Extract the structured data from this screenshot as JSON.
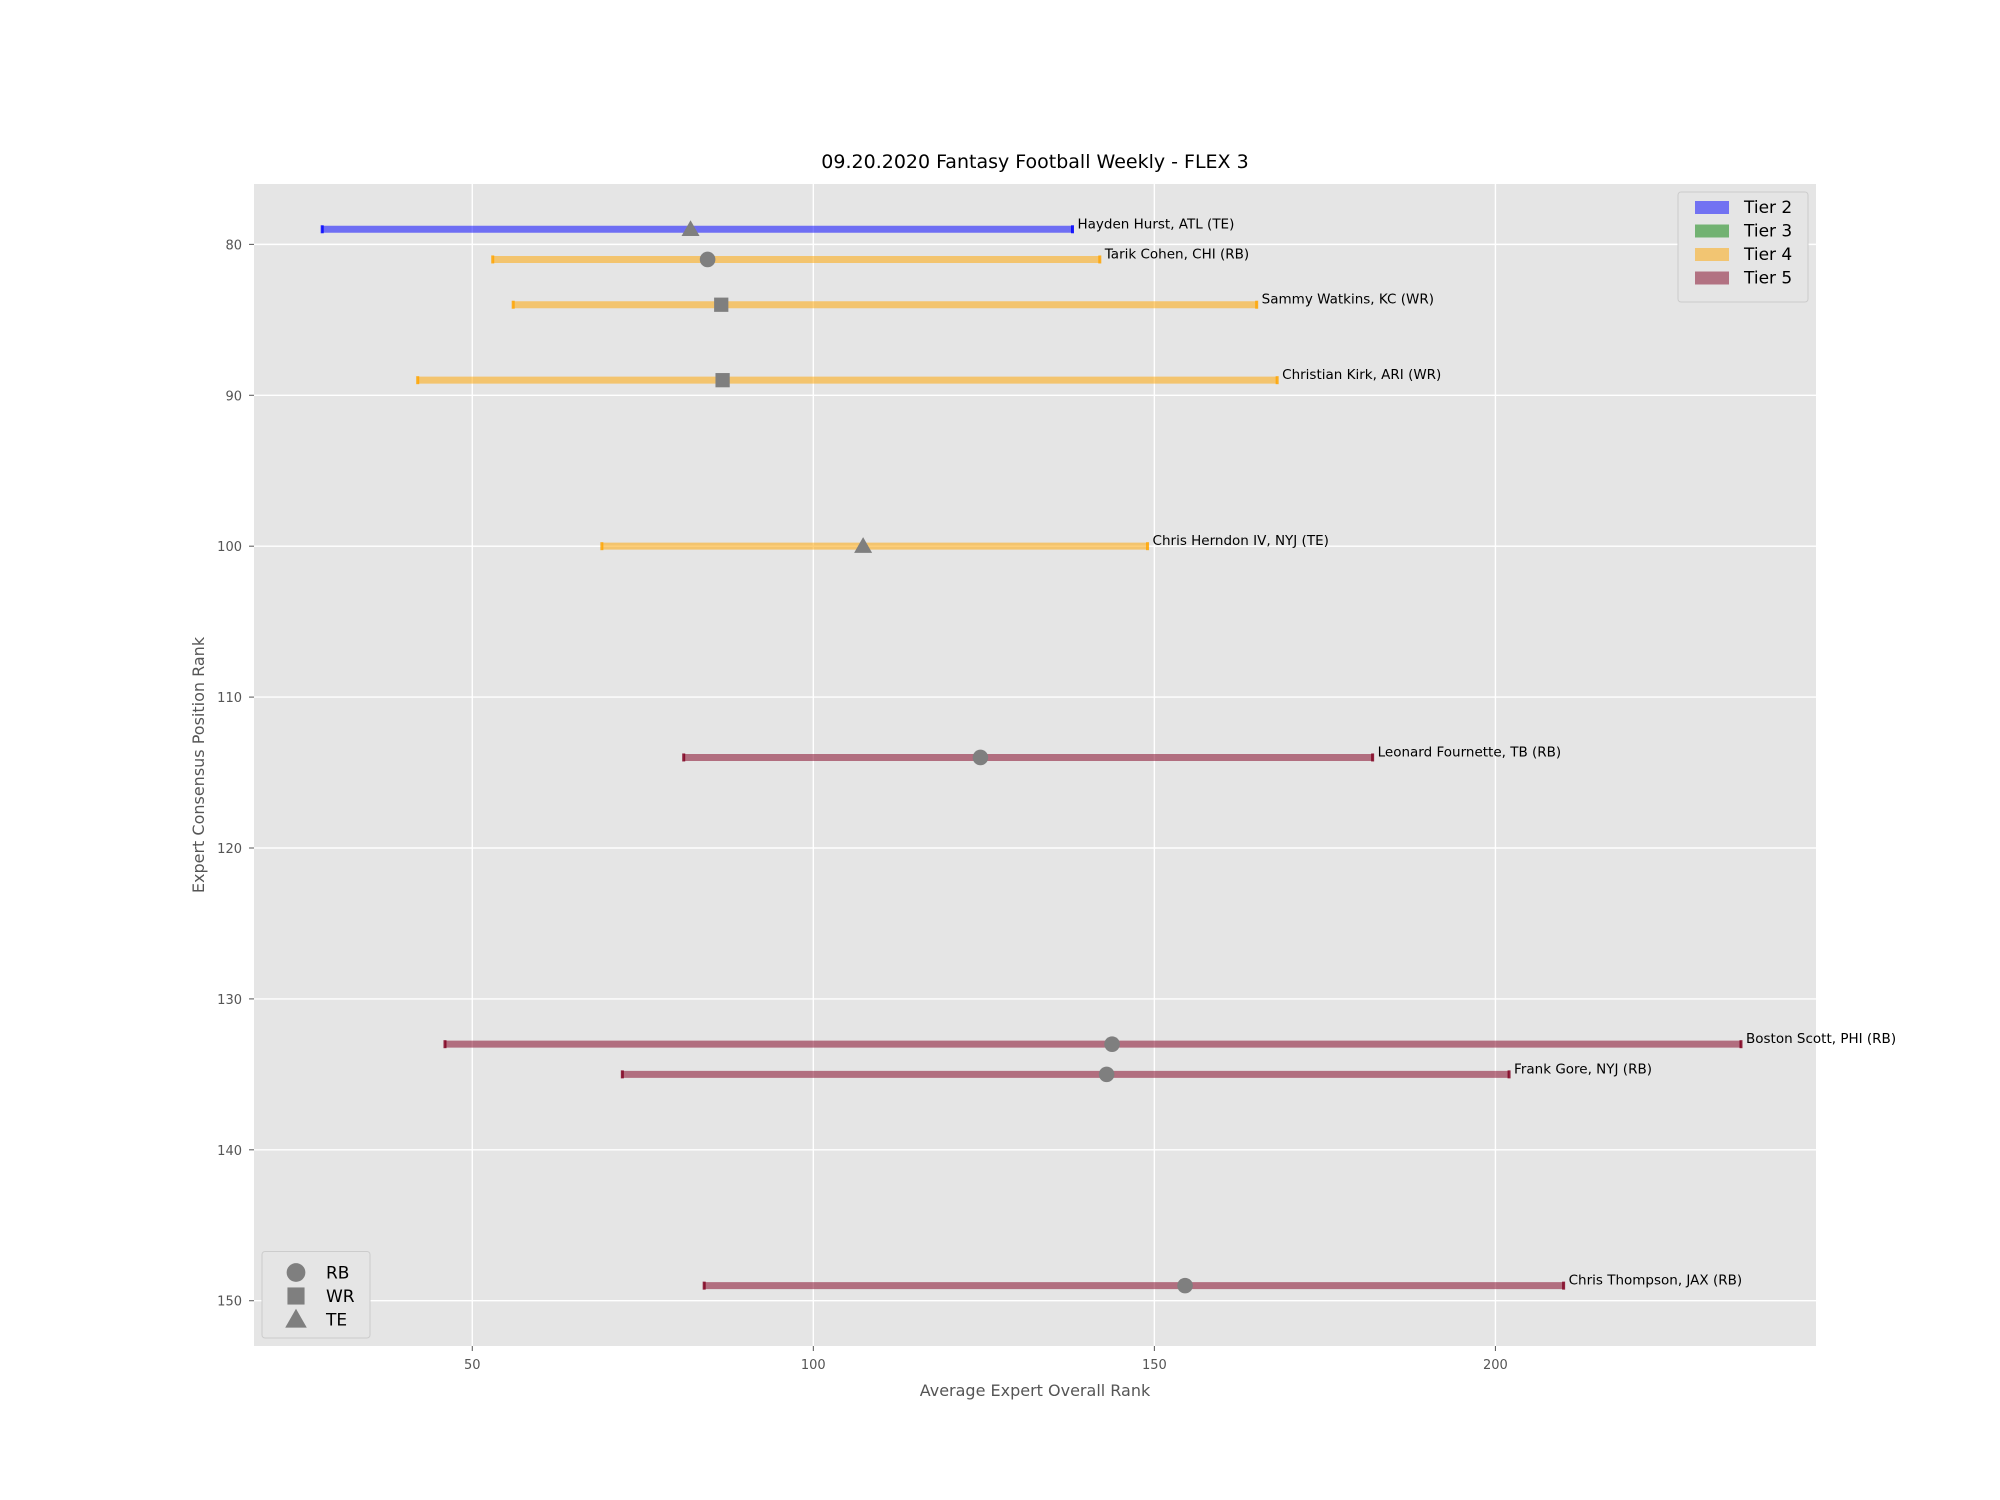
{
  "chart_data": {
    "type": "range",
    "title": "09.20.2020 Fantasy Football Weekly - FLEX 3",
    "xlabel": "Average Expert Overall Rank",
    "ylabel": "Expert Consensus Position Rank",
    "xlim": [
      18,
      247
    ],
    "ylim": [
      153,
      76
    ],
    "y_inverted": true,
    "xticks": [
      50,
      100,
      150,
      200
    ],
    "yticks": [
      80,
      90,
      100,
      110,
      120,
      130,
      140,
      150
    ],
    "grid": true,
    "tier_legend_placement": "top-right",
    "position_legend_placement": "bottom-left",
    "tiers": [
      {
        "name": "Tier 2",
        "color": "#0000ff"
      },
      {
        "name": "Tier 3",
        "color": "#008000"
      },
      {
        "name": "Tier 4",
        "color": "#ffa500"
      },
      {
        "name": "Tier 5",
        "color": "#800020"
      }
    ],
    "positions": [
      {
        "name": "RB",
        "marker": "circle"
      },
      {
        "name": "WR",
        "marker": "square"
      },
      {
        "name": "TE",
        "marker": "triangle"
      }
    ],
    "players": [
      {
        "label": "Hayden Hurst, ATL (TE)",
        "rank": 79,
        "min": 28,
        "max": 138,
        "avg": 82,
        "tier": "Tier 2",
        "pos": "TE"
      },
      {
        "label": "Tarik Cohen, CHI (RB)",
        "rank": 81,
        "min": 53,
        "max": 142,
        "avg": 84.5,
        "tier": "Tier 4",
        "pos": "RB"
      },
      {
        "label": "Sammy Watkins, KC (WR)",
        "rank": 84,
        "min": 56,
        "max": 165,
        "avg": 86.5,
        "tier": "Tier 4",
        "pos": "WR"
      },
      {
        "label": "Christian Kirk, ARI (WR)",
        "rank": 89,
        "min": 42,
        "max": 168,
        "avg": 86.7,
        "tier": "Tier 4",
        "pos": "WR"
      },
      {
        "label": "Chris Herndon IV, NYJ (TE)",
        "rank": 100,
        "min": 69,
        "max": 149,
        "avg": 107.3,
        "tier": "Tier 4",
        "pos": "TE"
      },
      {
        "label": "Leonard Fournette, TB (RB)",
        "rank": 114,
        "min": 81,
        "max": 182,
        "avg": 124.5,
        "tier": "Tier 5",
        "pos": "RB"
      },
      {
        "label": "Boston Scott, PHI (RB)",
        "rank": 133,
        "min": 46,
        "max": 236,
        "avg": 143.8,
        "tier": "Tier 5",
        "pos": "RB"
      },
      {
        "label": "Frank Gore, NYJ (RB)",
        "rank": 135,
        "min": 72,
        "max": 202,
        "avg": 143,
        "tier": "Tier 5",
        "pos": "RB"
      },
      {
        "label": "Chris Thompson, JAX (RB)",
        "rank": 149,
        "min": 84,
        "max": 210,
        "avg": 154.5,
        "tier": "Tier 5",
        "pos": "RB"
      }
    ]
  }
}
